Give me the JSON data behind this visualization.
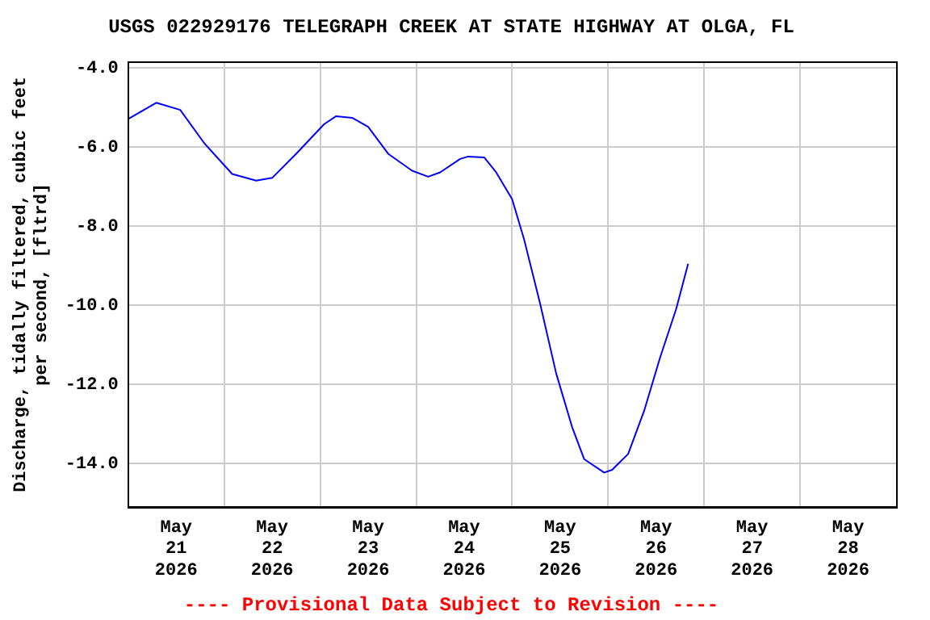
{
  "chart_data": {
    "type": "line",
    "title": "USGS 022929176 TELEGRAPH CREEK AT STATE HIGHWAY AT OLGA, FL",
    "ylabel": "Discharge, tidally filtered, cubic feet per second, [fltrd]",
    "annotations": [
      "---- Provisional Data Subject to Revision ----"
    ],
    "x": [
      "2026-05-21T00:00",
      "2026-05-21T07:00",
      "2026-05-21T13:00",
      "2026-05-21T19:00",
      "2026-05-22T02:00",
      "2026-05-22T08:00",
      "2026-05-22T12:00",
      "2026-05-22T18:00",
      "2026-05-23T01:00",
      "2026-05-23T04:00",
      "2026-05-23T08:00",
      "2026-05-23T12:00",
      "2026-05-23T17:00",
      "2026-05-23T23:00",
      "2026-05-24T03:00",
      "2026-05-24T06:00",
      "2026-05-24T11:00",
      "2026-05-24T13:00",
      "2026-05-24T17:00",
      "2026-05-24T20:00",
      "2026-05-25T00:00",
      "2026-05-25T03:00",
      "2026-05-25T07:00",
      "2026-05-25T11:00",
      "2026-05-25T15:00",
      "2026-05-25T18:00",
      "2026-05-25T23:00",
      "2026-05-26T01:00",
      "2026-05-26T05:00",
      "2026-05-26T09:00",
      "2026-05-26T13:00",
      "2026-05-26T17:00",
      "2026-05-26T20:00"
    ],
    "series": [
      {
        "color": "#0000ff",
        "values": [
          -5.29,
          -4.88,
          -5.06,
          -5.9,
          -6.68,
          -6.85,
          -6.78,
          -6.17,
          -5.42,
          -5.22,
          -5.26,
          -5.49,
          -6.17,
          -6.6,
          -6.75,
          -6.64,
          -6.3,
          -6.24,
          -6.26,
          -6.64,
          -7.32,
          -8.34,
          -9.96,
          -11.72,
          -13.08,
          -13.89,
          -14.23,
          -14.16,
          -13.76,
          -12.67,
          -11.32,
          -10.1,
          -8.95
        ]
      }
    ],
    "xlim": [
      "2026-05-21T00:00",
      "2026-05-29T00:00"
    ],
    "xticks": [
      {
        "value": "2026-05-21T12:00",
        "label": "May 21 2026"
      },
      {
        "value": "2026-05-22T00:00",
        "label": null
      },
      {
        "value": "2026-05-22T12:00",
        "label": "May 22 2026"
      },
      {
        "value": "2026-05-23T00:00",
        "label": null
      },
      {
        "value": "2026-05-23T12:00",
        "label": "May 23 2026"
      },
      {
        "value": "2026-05-24T00:00",
        "label": null
      },
      {
        "value": "2026-05-24T12:00",
        "label": "May 24 2026"
      },
      {
        "value": "2026-05-25T00:00",
        "label": null
      },
      {
        "value": "2026-05-25T12:00",
        "label": "May 25 2026"
      },
      {
        "value": "2026-05-26T00:00",
        "label": null
      },
      {
        "value": "2026-05-26T12:00",
        "label": "May 26 2026"
      },
      {
        "value": "2026-05-27T00:00",
        "label": null
      },
      {
        "value": "2026-05-27T12:00",
        "label": "May 27 2026"
      },
      {
        "value": "2026-05-28T00:00",
        "label": null
      },
      {
        "value": "2026-05-28T12:00",
        "label": "May 28 2026"
      }
    ],
    "ylim": [
      -15.1,
      -3.85
    ],
    "yticks": [
      {
        "value": -14,
        "label": "-14.0"
      },
      {
        "value": -12,
        "label": "-12.0"
      },
      {
        "value": -10,
        "label": "-10.0"
      },
      {
        "value": -8,
        "label": "-8.0"
      },
      {
        "value": -6,
        "label": "-6.0"
      },
      {
        "value": -4,
        "label": "-4.0"
      }
    ],
    "grid": true,
    "legend": false,
    "marker": "none",
    "line_style": "solid"
  }
}
